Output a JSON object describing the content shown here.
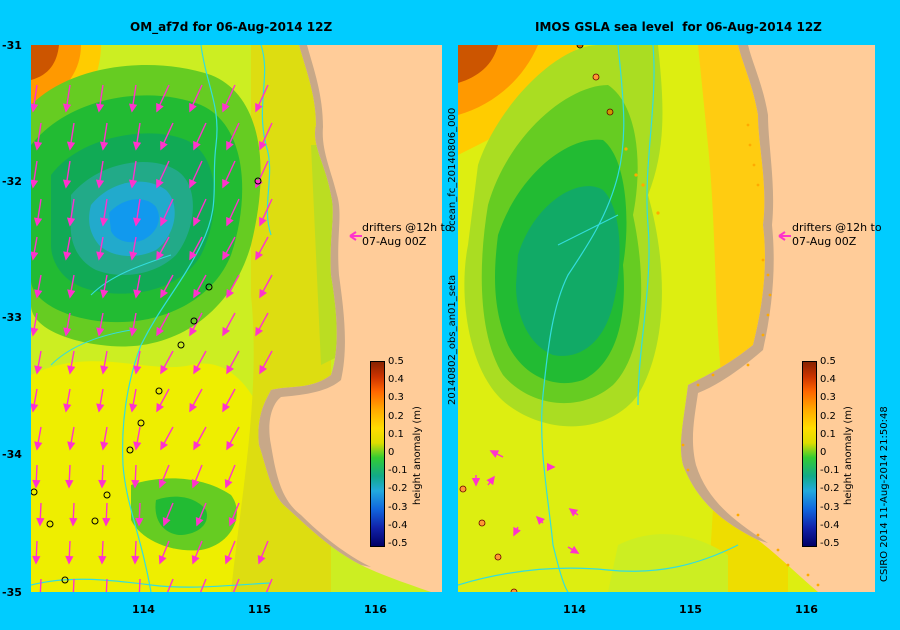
{
  "left_panel": {
    "title": "OM_af7d for 06-Aug-2014 12Z",
    "note_line1": "drifters @12h to",
    "note_line2": "07-Aug 00Z",
    "colorbar_label": "height anomaly (m)"
  },
  "right_panel": {
    "title": "IMOS GSLA sea level  for 06-Aug-2014 12Z",
    "note_line1": "drifters @12h to",
    "note_line2": "07-Aug 00Z",
    "colorbar_label": "height anomaly (m)",
    "side_label_top": "ocean_fc_20140806_000",
    "side_label_bottom": "20140802_obs_an01_seta"
  },
  "y_ticks": [
    "-31",
    "-32",
    "-33",
    "-34",
    "-35"
  ],
  "x_ticks": [
    "114",
    "115",
    "116"
  ],
  "colorbar_ticks": [
    "0.5",
    "0.4",
    "0.3",
    "0.2",
    "0.1",
    "0",
    "-0.1",
    "-0.2",
    "-0.3",
    "-0.4",
    "-0.5"
  ],
  "footer": "CSIRO 2014   11-Aug-2014 21:50:48",
  "colors": {
    "background": "#00ccff",
    "land": "#ffcc99",
    "coast_shadow": "#c8a888",
    "arrows": "#ff33cc",
    "rivers": "#33dddd"
  }
}
